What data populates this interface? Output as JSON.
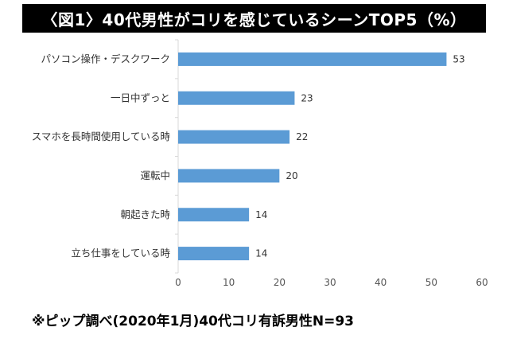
{
  "title": "〈図1〉40代男性がコリを感じているシーンTOP5（%）",
  "footnote": "※ピップ調べ(2020年1月)40代コリ有訴男性N=93",
  "colors": {
    "bar": "#5b9bd5",
    "title_bg": "#000000",
    "title_text": "#ffffff",
    "axis": "#d9d9d9"
  },
  "chart_data": {
    "type": "bar",
    "orientation": "horizontal",
    "categories": [
      "パソコン操作・デスクワーク",
      "一日中ずっと",
      "スマホを長時間使用している時",
      "運転中",
      "朝起きた時",
      "立ち仕事をしている時"
    ],
    "values": [
      53,
      23,
      22,
      20,
      14,
      14
    ],
    "xlim": [
      0,
      60
    ],
    "xticks": [
      0,
      10,
      20,
      30,
      40,
      50,
      60
    ],
    "grid": false,
    "data_labels": true
  }
}
